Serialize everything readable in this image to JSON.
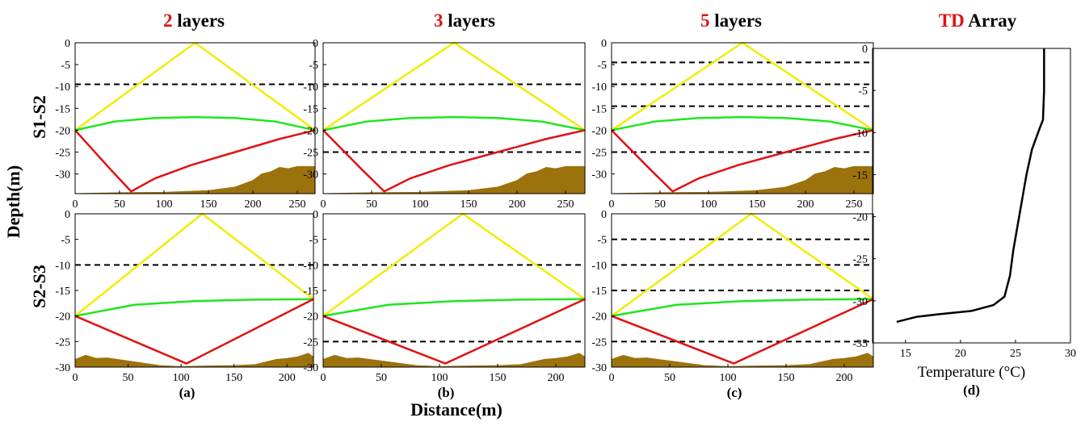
{
  "figure": {
    "ylabel": "Depth(m)",
    "xlabel": "Distance(m)",
    "row_labels": [
      "S1-S2",
      "S2-S3"
    ]
  },
  "chart_data": [
    {
      "type": "line",
      "title_highlight": "2",
      "title": "layers",
      "caption": "(a)",
      "xlim": [
        0,
        270
      ],
      "ylim": [
        -34.5,
        0
      ],
      "xticks": [
        0,
        50,
        100,
        150,
        200,
        250
      ],
      "yticks": [
        0,
        -5,
        -10,
        -15,
        -20,
        -25,
        -30
      ],
      "interfaces": [
        -9.5
      ],
      "series": [
        {
          "color": "#f2ec00",
          "x": [
            0,
            135,
            270
          ],
          "y": [
            -20,
            0,
            -20
          ]
        },
        {
          "color": "#1ee61e",
          "x": [
            0,
            45,
            90,
            135,
            180,
            225,
            270
          ],
          "y": [
            -20,
            -18,
            -17.2,
            -17,
            -17.2,
            -18,
            -20
          ]
        },
        {
          "color": "#e01212",
          "x": [
            0,
            20,
            40,
            63,
            90,
            130,
            180,
            230,
            270
          ],
          "y": [
            -20,
            -24.5,
            -29,
            -34,
            -31,
            -28,
            -25,
            -22,
            -20
          ]
        }
      ],
      "seabed": {
        "color": "#9c720c",
        "x": [
          0,
          50,
          100,
          150,
          180,
          200,
          210,
          220,
          230,
          240,
          250,
          270
        ],
        "y": [
          -34.5,
          -34.3,
          -34.2,
          -33.8,
          -33,
          -31.5,
          -30,
          -29.5,
          -28.5,
          -28.8,
          -28.3,
          -28.3
        ]
      }
    },
    {
      "type": "line",
      "title_highlight": "3",
      "title": "layers",
      "caption": "(b)",
      "xlim": [
        0,
        270
      ],
      "ylim": [
        -34.5,
        0
      ],
      "xticks": [
        0,
        50,
        100,
        150,
        200,
        250
      ],
      "yticks": [
        0,
        -5,
        -10,
        -15,
        -20,
        -25,
        -30
      ],
      "interfaces": [
        -9.5,
        -25
      ],
      "series": [
        {
          "color": "#f2ec00",
          "x": [
            0,
            135,
            270
          ],
          "y": [
            -20,
            0,
            -20
          ]
        },
        {
          "color": "#1ee61e",
          "x": [
            0,
            45,
            90,
            135,
            180,
            225,
            270
          ],
          "y": [
            -20,
            -18,
            -17.2,
            -17,
            -17.2,
            -18,
            -20
          ]
        },
        {
          "color": "#e01212",
          "x": [
            0,
            20,
            40,
            63,
            90,
            130,
            180,
            230,
            270
          ],
          "y": [
            -20,
            -24.5,
            -29,
            -34,
            -31,
            -28,
            -25,
            -22,
            -20
          ]
        }
      ],
      "seabed": {
        "color": "#9c720c",
        "x": [
          0,
          50,
          100,
          150,
          180,
          200,
          210,
          220,
          230,
          240,
          250,
          270
        ],
        "y": [
          -34.5,
          -34.3,
          -34.2,
          -33.8,
          -33,
          -31.5,
          -30,
          -29.5,
          -28.5,
          -28.8,
          -28.3,
          -28.3
        ]
      }
    },
    {
      "type": "line",
      "title_highlight": "5",
      "title": "layers",
      "caption": "(c)",
      "xlim": [
        0,
        270
      ],
      "ylim": [
        -34.5,
        0
      ],
      "xticks": [
        0,
        50,
        100,
        150,
        200,
        250
      ],
      "yticks": [
        0,
        -5,
        -10,
        -15,
        -20,
        -25,
        -30
      ],
      "interfaces": [
        -4.5,
        -9.5,
        -14.5,
        -25
      ],
      "series": [
        {
          "color": "#f2ec00",
          "x": [
            0,
            135,
            270
          ],
          "y": [
            -20,
            0,
            -20
          ]
        },
        {
          "color": "#1ee61e",
          "x": [
            0,
            45,
            90,
            135,
            180,
            225,
            270
          ],
          "y": [
            -20,
            -18,
            -17.2,
            -17,
            -17.2,
            -18,
            -20
          ]
        },
        {
          "color": "#e01212",
          "x": [
            0,
            20,
            40,
            63,
            90,
            130,
            180,
            230,
            270
          ],
          "y": [
            -20,
            -24.5,
            -29,
            -34,
            -31,
            -28,
            -25,
            -22,
            -20
          ]
        }
      ],
      "seabed": {
        "color": "#9c720c",
        "x": [
          0,
          50,
          100,
          150,
          180,
          200,
          210,
          220,
          230,
          240,
          250,
          270
        ],
        "y": [
          -34.5,
          -34.3,
          -34.2,
          -33.8,
          -33,
          -31.5,
          -30,
          -29.5,
          -28.5,
          -28.8,
          -28.3,
          -28.3
        ]
      }
    },
    {
      "type": "line",
      "xlim": [
        0,
        225
      ],
      "ylim": [
        -30,
        0
      ],
      "xticks": [
        0,
        50,
        100,
        150,
        200
      ],
      "yticks": [
        0,
        -5,
        -10,
        -15,
        -20,
        -25,
        -30
      ],
      "interfaces": [
        -10
      ],
      "series": [
        {
          "color": "#f2ec00",
          "x": [
            0,
            120,
            225
          ],
          "y": [
            -20,
            0,
            -16.7
          ]
        },
        {
          "color": "#1ee61e",
          "x": [
            0,
            56,
            112,
            168,
            225
          ],
          "y": [
            -20,
            -17.8,
            -17.1,
            -16.8,
            -16.7
          ]
        },
        {
          "color": "#e01212",
          "x": [
            0,
            105,
            225
          ],
          "y": [
            -20,
            -29.3,
            -16.7
          ]
        }
      ],
      "seabed": {
        "color": "#9c720c",
        "x": [
          0,
          10,
          20,
          30,
          50,
          80,
          100,
          120,
          150,
          170,
          190,
          200,
          210,
          220,
          225
        ],
        "y": [
          -28.5,
          -27.7,
          -28.3,
          -28.2,
          -28.8,
          -29.7,
          -29.9,
          -29.8,
          -29.7,
          -29.5,
          -28.5,
          -28.3,
          -28,
          -27.3,
          -28
        ]
      }
    },
    {
      "type": "line",
      "xlim": [
        0,
        225
      ],
      "ylim": [
        -30,
        0
      ],
      "xticks": [
        0,
        50,
        100,
        150,
        200
      ],
      "yticks": [
        0,
        -5,
        -10,
        -15,
        -20,
        -25,
        -30
      ],
      "interfaces": [
        -10,
        -25
      ],
      "series": [
        {
          "color": "#f2ec00",
          "x": [
            0,
            120,
            225
          ],
          "y": [
            -20,
            0,
            -16.7
          ]
        },
        {
          "color": "#1ee61e",
          "x": [
            0,
            56,
            112,
            168,
            225
          ],
          "y": [
            -20,
            -17.8,
            -17.1,
            -16.8,
            -16.7
          ]
        },
        {
          "color": "#e01212",
          "x": [
            0,
            105,
            225
          ],
          "y": [
            -20,
            -29.3,
            -16.7
          ]
        }
      ],
      "seabed": {
        "color": "#9c720c",
        "x": [
          0,
          10,
          20,
          30,
          50,
          80,
          100,
          120,
          150,
          170,
          190,
          200,
          210,
          220,
          225
        ],
        "y": [
          -28.5,
          -27.7,
          -28.3,
          -28.2,
          -28.8,
          -29.7,
          -29.9,
          -29.8,
          -29.7,
          -29.5,
          -28.5,
          -28.3,
          -28,
          -27.3,
          -28
        ]
      }
    },
    {
      "type": "line",
      "xlim": [
        0,
        225
      ],
      "ylim": [
        -30,
        0
      ],
      "xticks": [
        0,
        50,
        100,
        150,
        200
      ],
      "yticks": [
        0,
        -5,
        -10,
        -15,
        -20,
        -25,
        -30
      ],
      "interfaces": [
        -5,
        -10,
        -15,
        -25
      ],
      "series": [
        {
          "color": "#f2ec00",
          "x": [
            0,
            120,
            225
          ],
          "y": [
            -20,
            0,
            -16.7
          ]
        },
        {
          "color": "#1ee61e",
          "x": [
            0,
            56,
            112,
            168,
            225
          ],
          "y": [
            -20,
            -17.8,
            -17.1,
            -16.8,
            -16.7
          ]
        },
        {
          "color": "#e01212",
          "x": [
            0,
            105,
            225
          ],
          "y": [
            -20,
            -29.3,
            -16.7
          ]
        }
      ],
      "seabed": {
        "color": "#9c720c",
        "x": [
          0,
          10,
          20,
          30,
          50,
          80,
          100,
          120,
          150,
          170,
          190,
          200,
          210,
          220,
          225
        ],
        "y": [
          -28.5,
          -27.7,
          -28.3,
          -28.2,
          -28.8,
          -29.7,
          -29.9,
          -29.8,
          -29.7,
          -29.5,
          -28.5,
          -28.3,
          -28,
          -27.3,
          -28
        ]
      }
    },
    {
      "type": "line",
      "title_highlight": "TD",
      "title": "Array",
      "caption": "(d)",
      "xlabel": "Temperature (°C)",
      "xlim": [
        12,
        30
      ],
      "ylim": [
        -35,
        0
      ],
      "xticks": [
        15,
        20,
        25,
        30
      ],
      "yticks": [
        0,
        -5,
        -10,
        -15,
        -20,
        -25,
        -30,
        -35
      ],
      "series": [
        {
          "color": "#000000",
          "x": [
            27.6,
            27.6,
            27.5,
            27.2,
            26.5,
            26,
            25.6,
            25.2,
            24.8,
            24.5,
            24,
            23,
            21,
            18,
            16,
            14.2
          ],
          "y": [
            0,
            -5,
            -8.5,
            -9.5,
            -12,
            -15,
            -18,
            -21,
            -24,
            -27,
            -29.5,
            -30.5,
            -31.2,
            -31.6,
            -31.9,
            -32.5
          ]
        }
      ]
    }
  ]
}
